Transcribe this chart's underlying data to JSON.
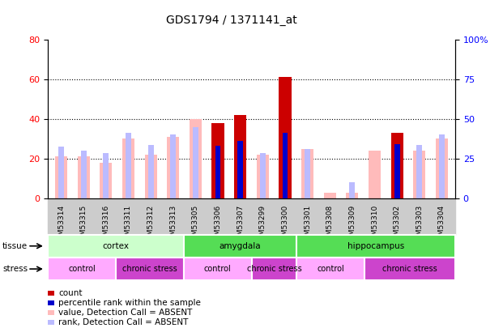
{
  "title": "GDS1794 / 1371141_at",
  "samples": [
    "GSM53314",
    "GSM53315",
    "GSM53316",
    "GSM53311",
    "GSM53312",
    "GSM53313",
    "GSM53305",
    "GSM53306",
    "GSM53307",
    "GSM53299",
    "GSM53300",
    "GSM53301",
    "GSM53308",
    "GSM53309",
    "GSM53310",
    "GSM53302",
    "GSM53303",
    "GSM53304"
  ],
  "count_values": [
    0,
    0,
    0,
    0,
    0,
    0,
    0,
    38,
    42,
    0,
    61,
    0,
    0,
    0,
    0,
    33,
    0,
    0
  ],
  "percentile_values": [
    0,
    0,
    0,
    0,
    0,
    0,
    0,
    33,
    36,
    0,
    41,
    0,
    0,
    0,
    0,
    34,
    0,
    0
  ],
  "absent_value_values": [
    21,
    21,
    18,
    30,
    22,
    31,
    40,
    0,
    0,
    22,
    0,
    25,
    3,
    3,
    24,
    0,
    24,
    30
  ],
  "absent_rank_values": [
    26,
    24,
    23,
    33,
    27,
    32,
    36,
    0,
    0,
    23,
    0,
    25,
    0,
    8,
    0,
    0,
    27,
    32
  ],
  "color_count": "#cc0000",
  "color_percentile": "#0000cc",
  "color_absent_value": "#ffbbbb",
  "color_absent_rank": "#bbbbff",
  "ylim_left": [
    0,
    80
  ],
  "ylim_right": [
    0,
    100
  ],
  "yticks_left": [
    0,
    20,
    40,
    60,
    80
  ],
  "yticks_right": [
    0,
    25,
    50,
    75,
    100
  ],
  "ytick_labels_right": [
    "0",
    "25",
    "50",
    "75",
    "100%"
  ],
  "tissue_groups": [
    {
      "label": "cortex",
      "start": 0,
      "end": 6,
      "color": "#ccffcc"
    },
    {
      "label": "amygdala",
      "start": 6,
      "end": 11,
      "color": "#55dd55"
    },
    {
      "label": "hippocampus",
      "start": 11,
      "end": 18,
      "color": "#55dd55"
    }
  ],
  "stress_groups": [
    {
      "label": "control",
      "start": 0,
      "end": 3,
      "color": "#ffaaff"
    },
    {
      "label": "chronic stress",
      "start": 3,
      "end": 6,
      "color": "#cc44cc"
    },
    {
      "label": "control",
      "start": 6,
      "end": 9,
      "color": "#ffaaff"
    },
    {
      "label": "chronic stress",
      "start": 9,
      "end": 11,
      "color": "#cc44cc"
    },
    {
      "label": "control",
      "start": 11,
      "end": 14,
      "color": "#ffaaff"
    },
    {
      "label": "chronic stress",
      "start": 14,
      "end": 18,
      "color": "#cc44cc"
    }
  ],
  "legend_items": [
    {
      "color": "#cc0000",
      "label": "count"
    },
    {
      "color": "#0000cc",
      "label": "percentile rank within the sample"
    },
    {
      "color": "#ffbbbb",
      "label": "value, Detection Call = ABSENT"
    },
    {
      "color": "#bbbbff",
      "label": "rank, Detection Call = ABSENT"
    }
  ]
}
